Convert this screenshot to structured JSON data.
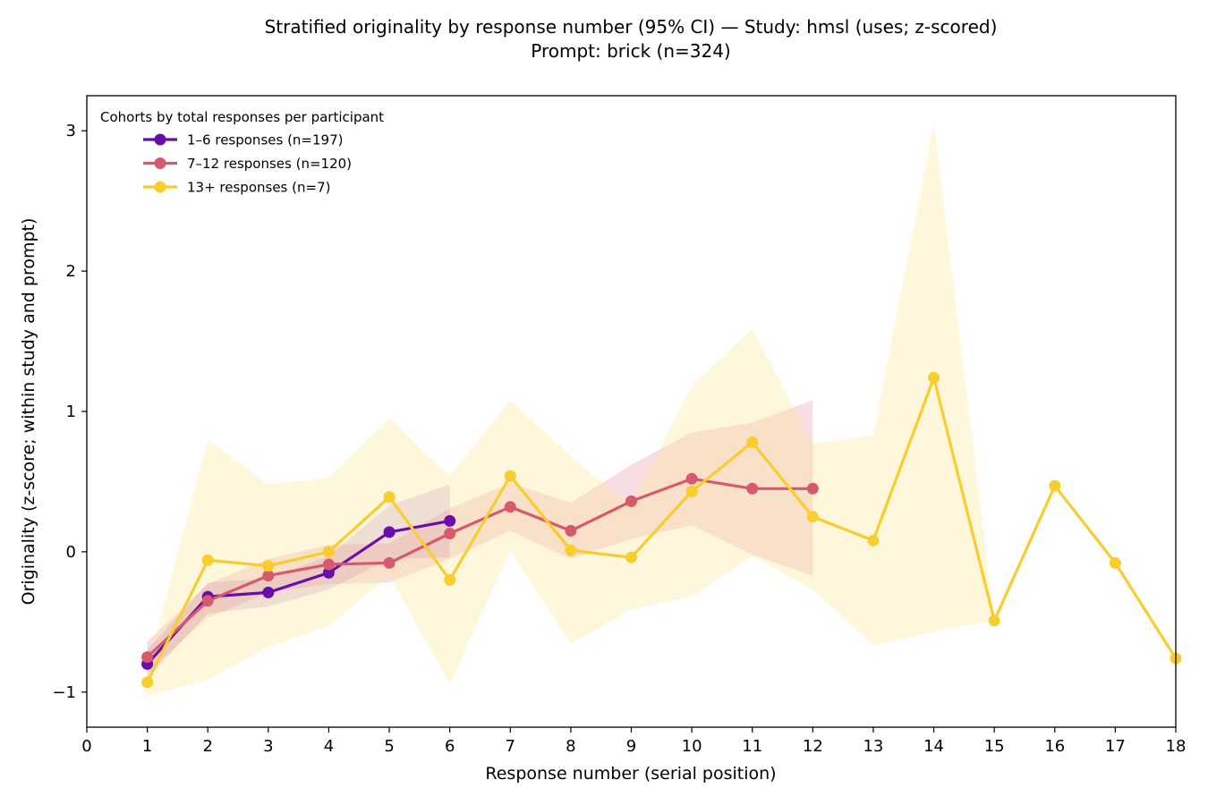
{
  "chart_data": {
    "type": "line",
    "title": "Stratified originality by response number (95% CI) — Study: hmsl (uses; z-scored)",
    "subtitle": "Prompt: brick (n=324)",
    "xlabel": "Response number (serial position)",
    "ylabel": "Originality (z-score; within study and prompt)",
    "xlim": [
      0,
      18
    ],
    "ylim": [
      -1.25,
      3.25
    ],
    "xticks": [
      "0",
      "1",
      "2",
      "3",
      "4",
      "5",
      "6",
      "7",
      "8",
      "9",
      "10",
      "11",
      "12",
      "13",
      "14",
      "15",
      "16",
      "17",
      "18"
    ],
    "yticks": [
      -1,
      0,
      1,
      2,
      3
    ],
    "ytick_labels": [
      "−1",
      "0",
      "1",
      "2",
      "3"
    ],
    "grid": false,
    "legend_title": "Cohorts by total responses per participant",
    "legend_position": "top-left",
    "series": [
      {
        "name": "1–6 responses (n=197)",
        "color": "#6a0dad",
        "band_color": "#6a0dad",
        "x": [
          1,
          2,
          3,
          4,
          5,
          6
        ],
        "y": [
          -0.8,
          -0.32,
          -0.29,
          -0.15,
          0.14,
          0.22
        ],
        "lower": [
          -0.9,
          -0.44,
          -0.39,
          -0.27,
          -0.05,
          -0.04
        ],
        "upper": [
          -0.7,
          -0.22,
          -0.19,
          -0.03,
          0.33,
          0.48
        ]
      },
      {
        "name": "7–12 responses (n=120)",
        "color": "#d6596e",
        "band_color": "#d6596e",
        "x": [
          1,
          2,
          3,
          4,
          5,
          6,
          7,
          8,
          9,
          10,
          11,
          12
        ],
        "y": [
          -0.75,
          -0.35,
          -0.17,
          -0.09,
          -0.08,
          0.13,
          0.32,
          0.15,
          0.36,
          0.52,
          0.45,
          0.45
        ],
        "lower": [
          -0.86,
          -0.47,
          -0.29,
          -0.23,
          -0.22,
          -0.05,
          0.15,
          -0.05,
          0.09,
          0.19,
          -0.02,
          -0.17
        ],
        "upper": [
          -0.64,
          -0.23,
          -0.05,
          0.05,
          0.06,
          0.31,
          0.49,
          0.35,
          0.62,
          0.85,
          0.92,
          1.08
        ]
      },
      {
        "name": "13+ responses (n=7)",
        "color": "#f8cd2e",
        "band_color": "#ffe38a",
        "x": [
          1,
          2,
          3,
          4,
          5,
          6,
          7,
          8,
          9,
          10,
          11,
          12,
          13,
          14,
          15,
          16,
          17,
          18
        ],
        "y": [
          -0.93,
          -0.06,
          -0.1,
          0.0,
          0.39,
          -0.2,
          0.54,
          0.01,
          -0.04,
          0.43,
          0.78,
          0.25,
          0.08,
          1.24,
          -0.49,
          0.47,
          -0.08,
          -0.76
        ],
        "lower": [
          -1.03,
          -0.91,
          -0.68,
          -0.53,
          -0.17,
          -0.94,
          0.01,
          -0.66,
          -0.41,
          -0.32,
          -0.03,
          -0.27,
          -0.67,
          -0.57,
          -0.49,
          0.47,
          -0.08,
          -0.76
        ],
        "upper": [
          -0.83,
          0.8,
          0.48,
          0.53,
          0.95,
          0.54,
          1.08,
          0.68,
          0.33,
          1.18,
          1.59,
          0.77,
          0.83,
          3.05,
          -0.49,
          0.47,
          -0.08,
          -0.76
        ]
      }
    ]
  }
}
